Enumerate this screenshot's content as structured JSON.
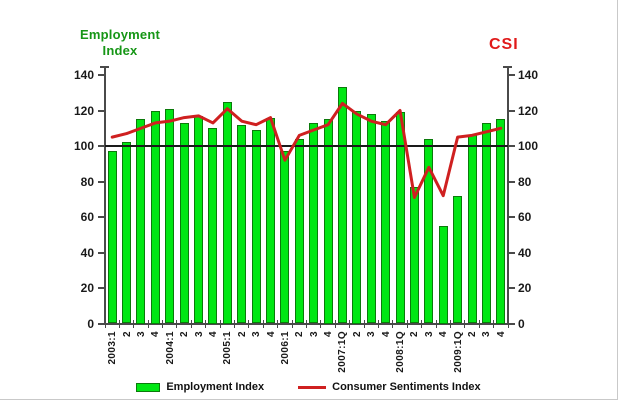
{
  "titles": {
    "employment_line1": "Employment",
    "employment_line2": "Index",
    "csi": "CSI"
  },
  "legend": {
    "employment_label": "Employment Index",
    "csi_label": "Consumer Sentiments Index"
  },
  "colors": {
    "axis": "#4a4a4a",
    "bar_fill": "#00e713",
    "bar_border": "#0b7a0b",
    "line": "#cf2020",
    "title_green": "#169616",
    "title_red": "#e01a1a",
    "reference_line": "#1a1a1a",
    "text": "#1a1a1a"
  },
  "chart_data": {
    "type": "combo",
    "categories": [
      "2003:1",
      "2",
      "3",
      "4",
      "2004:1",
      "2",
      "3",
      "4",
      "2005:1",
      "2",
      "3",
      "4",
      "2006:1",
      "2",
      "3",
      "4",
      "2007:1Q",
      "2",
      "3",
      "4",
      "2008:1Q",
      "2",
      "3",
      "4",
      "2009:1Q",
      "2",
      "3",
      "4"
    ],
    "series": [
      {
        "name": "Employment Index",
        "type": "bar",
        "color": "#00e713",
        "border_color": "#0b7a0b",
        "values": [
          97,
          102,
          115,
          120,
          121,
          113,
          117,
          110,
          125,
          112,
          109,
          116,
          97,
          104,
          113,
          115,
          133,
          120,
          118,
          114,
          119,
          77,
          104,
          55,
          72,
          106,
          113,
          115
        ]
      },
      {
        "name": "Consumer Sentiments Index",
        "type": "line",
        "color": "#cf2020",
        "values": [
          105,
          107,
          110,
          113,
          114,
          116,
          117,
          113,
          121,
          114,
          112,
          116,
          92,
          106,
          109,
          112,
          124,
          118,
          114,
          112,
          120,
          71,
          88,
          72,
          105,
          106,
          108,
          110
        ]
      }
    ],
    "left_axis_title": "Employment Index",
    "right_axis_title": "CSI",
    "y_ticks": [
      140,
      120,
      100,
      80,
      60,
      40,
      20,
      0
    ],
    "ylim": [
      0,
      140
    ],
    "reference_line": 100,
    "grid": false,
    "legend_position": "bottom",
    "x_label_rotation": -90
  }
}
